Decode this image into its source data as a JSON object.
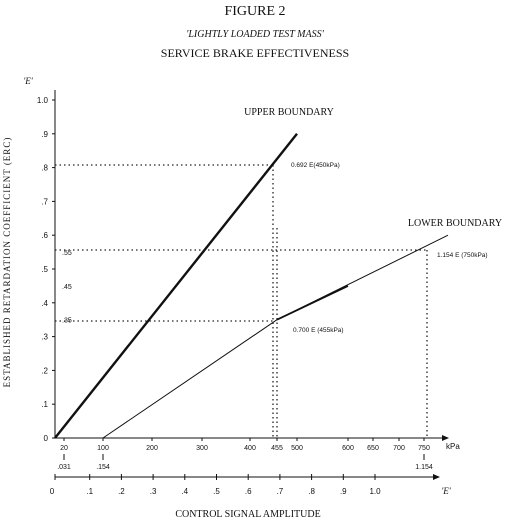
{
  "chart_data": {
    "type": "line",
    "title": "FIGURE 2",
    "subtitle": "'LIGHTLY LOADED TEST MASS'",
    "subtitle2": "SERVICE BRAKE EFFECTIVENESS",
    "ylabel": "ESTABLISHED RETARDATION COEFFICIENT (ERC)",
    "ylabel_symbol": "'E'",
    "xlabel": "CONTROL SIGNAL AMPLITUDE",
    "xlabel_symbol": "'E'",
    "kpa_unit": "kPa",
    "ylim": [
      0,
      1.0
    ],
    "y_ticks": [
      "0",
      ".1",
      ".2",
      ".3",
      ".4",
      ".5",
      ".6",
      ".7",
      ".8",
      ".9",
      "1.0"
    ],
    "y_extra_ticks": [
      ".55",
      ".45",
      ".35"
    ],
    "kpa_ticks": [
      "20",
      "100",
      "200",
      "300",
      "400",
      "455",
      "500",
      "600",
      "650",
      "700",
      "750"
    ],
    "kpa_sub_ticks": [
      ".031",
      ".154",
      "1.154"
    ],
    "e_ticks": [
      "0",
      ".1",
      ".2",
      ".3",
      ".4",
      ".5",
      ".6",
      ".7",
      ".8",
      ".9",
      "1.0"
    ],
    "series": [
      {
        "name": "UPPER BOUNDARY",
        "x_kpa": [
          0,
          500
        ],
        "y": [
          0,
          0.9
        ]
      },
      {
        "name": "LOWER BOUNDARY",
        "x_kpa": [
          100,
          455,
          820
        ],
        "y": [
          0,
          0.35,
          0.6
        ]
      }
    ],
    "annotations": [
      {
        "text": "0.692 E(450kPa)",
        "x_kpa": 450,
        "y": 0.8
      },
      {
        "text": "0.700 E (455kPa)",
        "x_kpa": 455,
        "y": 0.35
      },
      {
        "text": "1.154 E (750kPa)",
        "x_kpa": 750,
        "y": 0.55
      }
    ]
  }
}
